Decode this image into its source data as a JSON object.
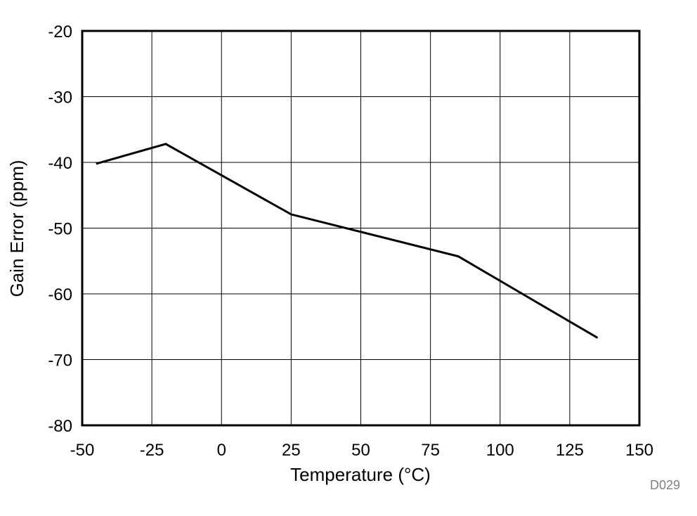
{
  "chart_data": {
    "type": "line",
    "title": "",
    "xlabel": "Temperature (°C)",
    "ylabel": "Gain Error (ppm)",
    "xlim": [
      -50,
      150
    ],
    "ylim": [
      -80,
      -20
    ],
    "xticks": [
      -50,
      -25,
      0,
      25,
      50,
      75,
      100,
      125,
      150
    ],
    "yticks": [
      -20,
      -30,
      -40,
      -50,
      -60,
      -70,
      -80
    ],
    "xtick_labels": [
      "-50",
      "-25",
      "0",
      "25",
      "50",
      "75",
      "100",
      "125",
      "150"
    ],
    "ytick_labels": [
      "-20",
      "-30",
      "-40",
      "-50",
      "-60",
      "-70",
      "-80"
    ],
    "grid": true,
    "legend": "none",
    "series": [
      {
        "x": [
          -45,
          -20,
          25,
          85,
          135
        ],
        "y": [
          -40.2,
          -37.2,
          -47.9,
          -54.3,
          -66.7
        ],
        "color": "#000000"
      }
    ],
    "figure_id": "D029"
  }
}
